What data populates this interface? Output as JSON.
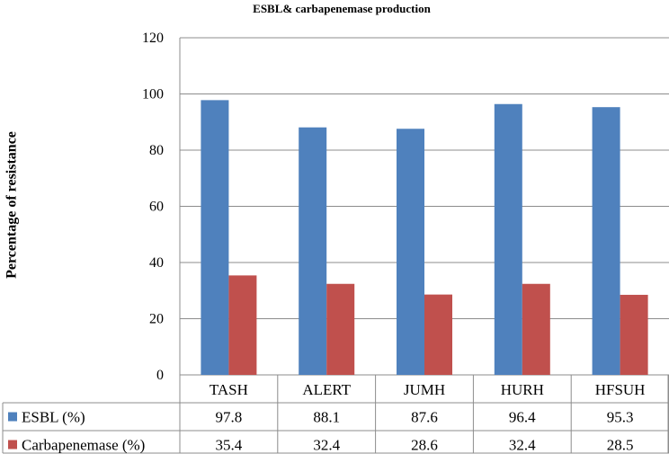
{
  "chart_data": {
    "type": "bar",
    "title": "ESBL& carbapenemase production",
    "ylabel": "Percentage of resistance",
    "xlabel": "",
    "ylim": [
      0,
      120
    ],
    "yticks": [
      "0",
      "20",
      "40",
      "60",
      "80",
      "100",
      "120"
    ],
    "grid": true,
    "legend": "data-table-below",
    "categories": [
      "TASH",
      "ALERT",
      "JUMH",
      "HURH",
      "HFSUH"
    ],
    "series": [
      {
        "name": "ESBL (%)",
        "color": "#4f81bd",
        "values": [
          97.8,
          88.1,
          87.6,
          96.4,
          95.3
        ],
        "labels": [
          "97.8",
          "88.1",
          "87.6",
          "96.4",
          "95.3"
        ]
      },
      {
        "name": "Carbapenemase (%)",
        "color": "#c0504d",
        "values": [
          35.4,
          32.4,
          28.6,
          32.4,
          28.5
        ],
        "labels": [
          "35.4",
          "32.4",
          "28.6",
          "32.4",
          "28.5"
        ]
      }
    ]
  }
}
